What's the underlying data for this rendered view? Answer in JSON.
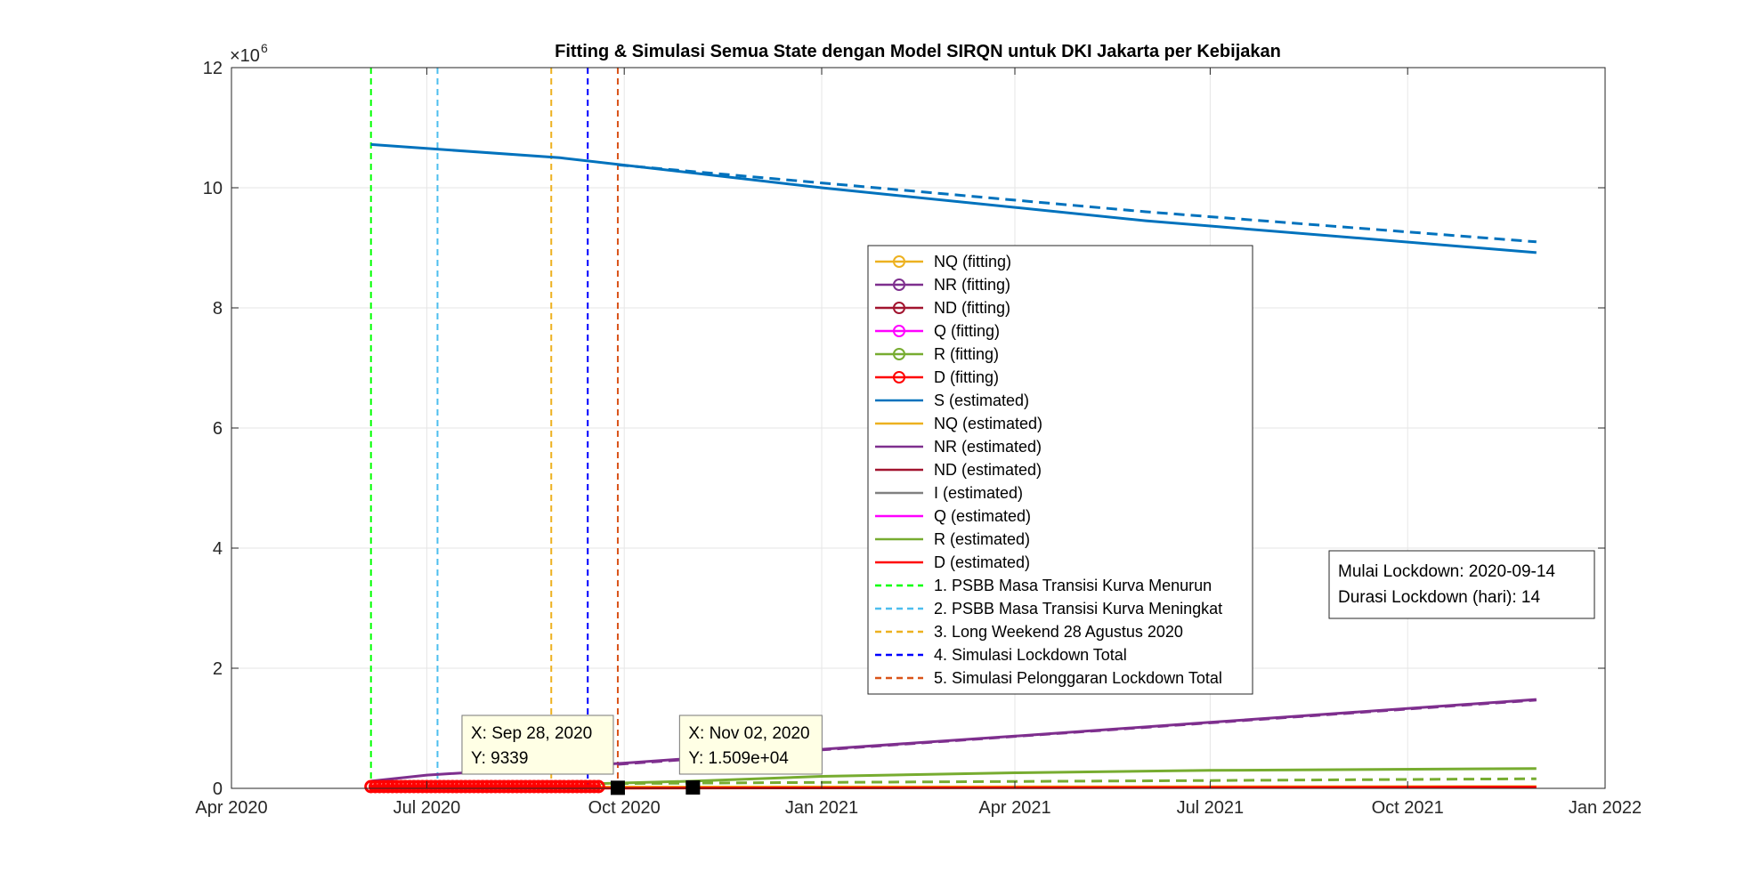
{
  "chart_data": {
    "type": "line",
    "title": "Fitting & Simulasi Semua State dengan Model SIRQN untuk DKI Jakarta per Kebijakan",
    "xlabel": "",
    "ylabel": "",
    "y_exponent_label": "×10",
    "y_exponent_power": "6",
    "xlim": [
      "2020-04-01",
      "2022-01-01"
    ],
    "ylim": [
      0,
      12
    ],
    "grid": true,
    "x_ticks": [
      {
        "date": "2020-04-01",
        "label": "Apr 2020"
      },
      {
        "date": "2020-07-01",
        "label": "Jul 2020"
      },
      {
        "date": "2020-10-01",
        "label": "Oct 2020"
      },
      {
        "date": "2021-01-01",
        "label": "Jan 2021"
      },
      {
        "date": "2021-04-01",
        "label": "Apr 2021"
      },
      {
        "date": "2021-07-01",
        "label": "Jul 2021"
      },
      {
        "date": "2021-10-01",
        "label": "Oct 2021"
      },
      {
        "date": "2022-01-01",
        "label": "Jan 2022"
      }
    ],
    "y_ticks": [
      {
        "value": 0,
        "label": "0"
      },
      {
        "value": 2,
        "label": "2"
      },
      {
        "value": 4,
        "label": "4"
      },
      {
        "value": 6,
        "label": "6"
      },
      {
        "value": 8,
        "label": "8"
      },
      {
        "value": 10,
        "label": "10"
      },
      {
        "value": 12,
        "label": "12"
      }
    ],
    "series": [
      {
        "name": "S (estimated)",
        "color": "#0072BD",
        "dash": "solid",
        "x": [
          "2020-06-05",
          "2020-09-01",
          "2021-01-01",
          "2021-06-01",
          "2021-11-30"
        ],
        "y": [
          10.72,
          10.5,
          10.0,
          9.45,
          8.92
        ]
      },
      {
        "name": "",
        "color": "#0072BD",
        "dash": "dashed",
        "x": [
          "2020-09-28",
          "2021-01-01",
          "2021-06-01",
          "2021-11-30"
        ],
        "y": [
          10.38,
          10.08,
          9.6,
          9.1
        ]
      },
      {
        "name": "NR (estimated)",
        "color": "#7E2F8E",
        "dash": "solid",
        "x": [
          "2020-06-05",
          "2020-07-01",
          "2020-10-01",
          "2021-01-01",
          "2021-04-01",
          "2021-07-01",
          "2021-11-30"
        ],
        "y": [
          0.12,
          0.22,
          0.42,
          0.65,
          0.87,
          1.1,
          1.48
        ]
      },
      {
        "name": "",
        "color": "#7E2F8E",
        "dash": "dashed",
        "x": [
          "2020-09-28",
          "2021-01-01",
          "2021-07-01",
          "2021-11-30"
        ],
        "y": [
          0.4,
          0.64,
          1.09,
          1.47
        ]
      },
      {
        "name": "R (estimated)",
        "color": "#77AC30",
        "dash": "solid",
        "x": [
          "2020-09-20",
          "2020-11-02",
          "2021-01-01",
          "2021-04-01",
          "2021-07-01",
          "2021-11-30"
        ],
        "y": [
          0.08,
          0.12,
          0.2,
          0.26,
          0.3,
          0.33
        ]
      },
      {
        "name": "",
        "color": "#77AC30",
        "dash": "dashed",
        "x": [
          "2020-09-28",
          "2021-01-01",
          "2021-07-01",
          "2021-11-30"
        ],
        "y": [
          0.08,
          0.1,
          0.13,
          0.16
        ]
      },
      {
        "name": "NQ (estimated)",
        "color": "#EDB120",
        "dash": "solid",
        "x": [
          "2020-06-05",
          "2021-11-30"
        ],
        "y": [
          0.02,
          0.03
        ]
      },
      {
        "name": "D (estimated)",
        "color": "#FF0000",
        "dash": "solid",
        "x": [
          "2020-06-05",
          "2020-10-01",
          "2021-11-30"
        ],
        "y": [
          0.0,
          0.005,
          0.02
        ]
      }
    ],
    "fitting_series": {
      "name": "D (fitting)",
      "color": "#FF0000",
      "x_start": "2020-06-05",
      "x_end": "2020-09-20",
      "y": 0.0
    },
    "policy_lines": [
      {
        "date": "2020-06-05",
        "label": "1. PSBB Masa Transisi Kurva Menurun",
        "color": "#00FF00"
      },
      {
        "date": "2020-07-06",
        "label": "2. PSBB Masa Transisi Kurva Meningkat",
        "color": "#4DBEEE"
      },
      {
        "date": "2020-08-28",
        "label": "3. Long Weekend 28 Agustus 2020",
        "color": "#EDB120"
      },
      {
        "date": "2020-09-14",
        "label": "4. Simulasi Lockdown Total",
        "color": "#0000FF"
      },
      {
        "date": "2020-09-28",
        "label": "5. Simulasi Pelonggaran Lockdown Total",
        "color": "#D95319"
      }
    ],
    "legend_position": "center",
    "legend": [
      {
        "label": "NQ (fitting)",
        "color": "#EDB120",
        "marker": true,
        "dash": "solid"
      },
      {
        "label": "NR (fitting)",
        "color": "#7E2F8E",
        "marker": true,
        "dash": "solid"
      },
      {
        "label": "ND (fitting)",
        "color": "#A2142F",
        "marker": true,
        "dash": "solid"
      },
      {
        "label": "Q (fitting)",
        "color": "#FF00FF",
        "marker": true,
        "dash": "solid"
      },
      {
        "label": "R (fitting)",
        "color": "#77AC30",
        "marker": true,
        "dash": "solid"
      },
      {
        "label": "D (fitting)",
        "color": "#FF0000",
        "marker": true,
        "dash": "solid"
      },
      {
        "label": "S (estimated)",
        "color": "#0072BD",
        "marker": false,
        "dash": "solid"
      },
      {
        "label": "NQ (estimated)",
        "color": "#EDB120",
        "marker": false,
        "dash": "solid"
      },
      {
        "label": "NR (estimated)",
        "color": "#7E2F8E",
        "marker": false,
        "dash": "solid"
      },
      {
        "label": "ND (estimated)",
        "color": "#A2142F",
        "marker": false,
        "dash": "solid"
      },
      {
        "label": "I (estimated)",
        "color": "#808080",
        "marker": false,
        "dash": "solid"
      },
      {
        "label": "Q (estimated)",
        "color": "#FF00FF",
        "marker": false,
        "dash": "solid"
      },
      {
        "label": "R (estimated)",
        "color": "#77AC30",
        "marker": false,
        "dash": "solid"
      },
      {
        "label": "D (estimated)",
        "color": "#FF0000",
        "marker": false,
        "dash": "solid"
      },
      {
        "label": "1. PSBB Masa Transisi Kurva Menurun",
        "color": "#00FF00",
        "marker": false,
        "dash": "dashed"
      },
      {
        "label": "2. PSBB Masa Transisi Kurva Meningkat",
        "color": "#4DBEEE",
        "marker": false,
        "dash": "dashed"
      },
      {
        "label": "3. Long Weekend 28 Agustus 2020",
        "color": "#EDB120",
        "marker": false,
        "dash": "dashed"
      },
      {
        "label": "4. Simulasi Lockdown Total",
        "color": "#0000FF",
        "marker": false,
        "dash": "dashed"
      },
      {
        "label": "5. Simulasi Pelonggaran Lockdown Total",
        "color": "#D95319",
        "marker": false,
        "dash": "dashed"
      }
    ],
    "datatips": [
      {
        "date": "2020-09-28",
        "value": 0.009339,
        "line1": "X: Sep 28, 2020",
        "line2": "Y: 9339"
      },
      {
        "date": "2020-11-02",
        "value": 0.01509,
        "line1": "X: Nov 02, 2020",
        "line2": "Y: 1.509e+04"
      }
    ],
    "info_box": {
      "line1": "Mulai Lockdown: 2020-09-14",
      "line2": "Durasi Lockdown (hari): 14"
    }
  }
}
